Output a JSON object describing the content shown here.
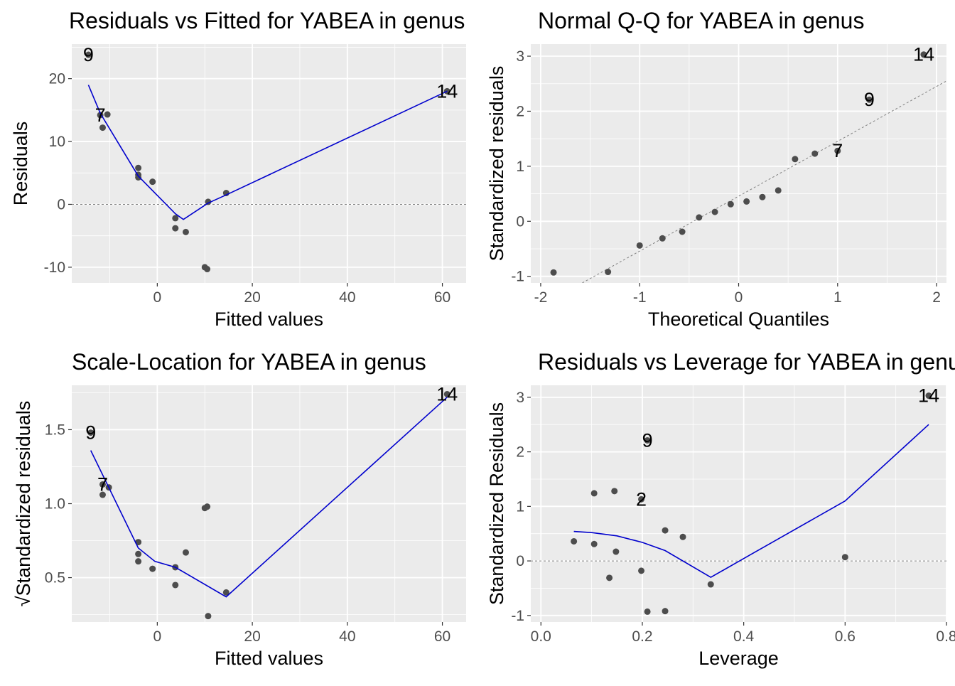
{
  "colors": {
    "panel_bg": "#ebebeb",
    "grid_major": "#ffffff",
    "point": "#4d4d4d",
    "smooth_line": "#0000cd",
    "reference_line": "#808080",
    "tick_label": "#4d4d4d",
    "text": "#000000"
  },
  "chart_data": [
    {
      "type": "scatter",
      "title": "Residuals vs Fitted for YABEA in genus",
      "xlabel": "Fitted values",
      "ylabel": "Residuals",
      "xlim": [
        -18,
        65
      ],
      "ylim": [
        -12.5,
        25.5
      ],
      "xticks": [
        0,
        20,
        40,
        60
      ],
      "xtick_labels": [
        "0",
        "20",
        "40",
        "60"
      ],
      "yticks": [
        -10,
        0,
        10,
        20
      ],
      "ytick_labels": [
        "-10",
        "0",
        "10",
        "20"
      ],
      "grid": true,
      "points": [
        [
          -14.5,
          23.8
        ],
        [
          -12,
          14.2
        ],
        [
          -11.5,
          12.2
        ],
        [
          -10.5,
          14.3
        ],
        [
          -4,
          5.8
        ],
        [
          -4,
          4.7
        ],
        [
          -4,
          4.3
        ],
        [
          -1,
          3.6
        ],
        [
          3.8,
          -2.2
        ],
        [
          3.8,
          -3.8
        ],
        [
          6,
          -4.4
        ],
        [
          10,
          -10
        ],
        [
          10.5,
          -10.3
        ],
        [
          10.7,
          0.4
        ],
        [
          14.5,
          1.8
        ],
        [
          61,
          18
        ]
      ],
      "smooth": [
        [
          -14.5,
          19
        ],
        [
          -12,
          14.5
        ],
        [
          -4,
          4.5
        ],
        [
          3.8,
          -1.5
        ],
        [
          5.5,
          -2.4
        ],
        [
          10.7,
          0.2
        ],
        [
          14.5,
          1.5
        ],
        [
          61,
          18
        ]
      ],
      "hline": 0,
      "labels": [
        {
          "text": "9",
          "x": -14.5,
          "y": 23.8
        },
        {
          "text": "7",
          "x": -12,
          "y": 14.2
        },
        {
          "text": "14",
          "x": 61,
          "y": 18
        }
      ]
    },
    {
      "type": "scatter",
      "title": "Normal Q-Q for YABEA in genus",
      "xlabel": "Theoretical Quantiles",
      "ylabel": "Standardized residuals",
      "xlim": [
        -2.1,
        2.1
      ],
      "ylim": [
        -1.12,
        3.22
      ],
      "xticks": [
        -2,
        -1,
        0,
        1,
        2
      ],
      "xtick_labels": [
        "-2",
        "-1",
        "0",
        "1",
        "2"
      ],
      "yticks": [
        -1,
        0,
        1,
        2,
        3
      ],
      "ytick_labels": [
        "-1",
        "0",
        "1",
        "2",
        "3"
      ],
      "grid": true,
      "points": [
        [
          -1.87,
          -0.93
        ],
        [
          -1.32,
          -0.92
        ],
        [
          -1.0,
          -0.44
        ],
        [
          -0.77,
          -0.31
        ],
        [
          -0.57,
          -0.19
        ],
        [
          -0.4,
          0.07
        ],
        [
          -0.24,
          0.17
        ],
        [
          -0.08,
          0.31
        ],
        [
          0.08,
          0.36
        ],
        [
          0.24,
          0.44
        ],
        [
          0.4,
          0.56
        ],
        [
          0.57,
          1.13
        ],
        [
          0.77,
          1.23
        ],
        [
          1.0,
          1.28
        ],
        [
          1.32,
          2.21
        ],
        [
          1.87,
          3.03
        ]
      ],
      "refline": [
        [
          -1.58,
          -1.12
        ],
        [
          2.1,
          2.55
        ]
      ],
      "labels": [
        {
          "text": "7",
          "x": 1.0,
          "y": 1.28
        },
        {
          "text": "9",
          "x": 1.32,
          "y": 2.21
        },
        {
          "text": "14",
          "x": 1.87,
          "y": 3.03
        }
      ]
    },
    {
      "type": "scatter",
      "title": "Scale-Location for YABEA in genus",
      "xlabel": "Fitted values",
      "ylabel": "√Standardized residuals",
      "xlim": [
        -18,
        65
      ],
      "ylim": [
        0.2,
        1.8
      ],
      "xticks": [
        0,
        20,
        40,
        60
      ],
      "xtick_labels": [
        "0",
        "20",
        "40",
        "60"
      ],
      "yticks": [
        0.5,
        1.0,
        1.5
      ],
      "ytick_labels": [
        "0.5",
        "1.0",
        "1.5"
      ],
      "grid": true,
      "points": [
        [
          -14,
          1.48
        ],
        [
          -11.5,
          1.13
        ],
        [
          -11.5,
          1.06
        ],
        [
          -10.2,
          1.11
        ],
        [
          -4,
          0.74
        ],
        [
          -4,
          0.66
        ],
        [
          -4,
          0.61
        ],
        [
          -1,
          0.56
        ],
        [
          3.8,
          0.57
        ],
        [
          3.8,
          0.45
        ],
        [
          6,
          0.67
        ],
        [
          10,
          0.97
        ],
        [
          10.5,
          0.98
        ],
        [
          10.7,
          0.24
        ],
        [
          14.5,
          0.4
        ],
        [
          61,
          1.74
        ]
      ],
      "smooth": [
        [
          -14,
          1.36
        ],
        [
          -4,
          0.7
        ],
        [
          -0.5,
          0.61
        ],
        [
          3.8,
          0.57
        ],
        [
          14.5,
          0.37
        ],
        [
          61,
          1.72
        ]
      ],
      "labels": [
        {
          "text": "9",
          "x": -14,
          "y": 1.48
        },
        {
          "text": "7",
          "x": -11.5,
          "y": 1.13
        },
        {
          "text": "14",
          "x": 61,
          "y": 1.74
        }
      ]
    },
    {
      "type": "scatter",
      "title": "Residuals vs Leverage for YABEA in genus",
      "xlabel": "Leverage",
      "ylabel": "Standardized Residuals",
      "xlim": [
        -0.02,
        0.8
      ],
      "ylim": [
        -1.12,
        3.22
      ],
      "xticks": [
        0.0,
        0.2,
        0.4,
        0.6,
        0.8
      ],
      "xtick_labels": [
        "0.0",
        "0.2",
        "0.4",
        "0.6",
        "0.8"
      ],
      "yticks": [
        -1,
        0,
        1,
        2,
        3
      ],
      "ytick_labels": [
        "-1",
        "0",
        "1",
        "2",
        "3"
      ],
      "grid": true,
      "points": [
        [
          0.065,
          0.36
        ],
        [
          0.105,
          1.24
        ],
        [
          0.105,
          0.31
        ],
        [
          0.135,
          -0.31
        ],
        [
          0.145,
          1.28
        ],
        [
          0.148,
          0.17
        ],
        [
          0.198,
          -0.18
        ],
        [
          0.198,
          1.13
        ],
        [
          0.21,
          2.21
        ],
        [
          0.21,
          -0.93
        ],
        [
          0.245,
          -0.92
        ],
        [
          0.245,
          0.56
        ],
        [
          0.28,
          0.44
        ],
        [
          0.335,
          -0.43
        ],
        [
          0.6,
          0.07
        ],
        [
          0.765,
          3.03
        ]
      ],
      "smooth": [
        [
          0.065,
          0.54
        ],
        [
          0.1,
          0.52
        ],
        [
          0.15,
          0.46
        ],
        [
          0.2,
          0.34
        ],
        [
          0.245,
          0.19
        ],
        [
          0.335,
          -0.3
        ],
        [
          0.42,
          0.15
        ],
        [
          0.6,
          1.1
        ],
        [
          0.765,
          2.5
        ]
      ],
      "hline": 0,
      "labels": [
        {
          "text": "9",
          "x": 0.21,
          "y": 2.21
        },
        {
          "text": "2",
          "x": 0.198,
          "y": 1.13
        },
        {
          "text": "14",
          "x": 0.765,
          "y": 3.03
        }
      ]
    }
  ]
}
